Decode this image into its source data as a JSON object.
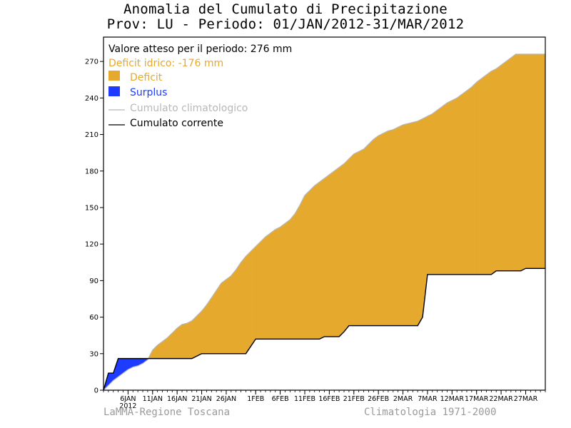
{
  "header": {
    "title": "Anomalia del Cumulato di Precipitazione",
    "subtitle": "Prov: LU - Periodo: 01/JAN/2012-31/MAR/2012"
  },
  "footer": {
    "left": "LaMMA-Regione Toscana",
    "right": "Climatologia 1971-2000"
  },
  "legend": {
    "expected": "Valore atteso per il periodo: 276 mm",
    "deficit_text": "Deficit idrico: -176 mm",
    "deficit_label": "Deficit",
    "surplus_label": "Surplus",
    "clim_label": "Cumulato climatologico",
    "current_label": "Cumulato corrente"
  },
  "colors": {
    "deficit": "#e5a92e",
    "surplus": "#1e3cff",
    "climatological": "#b8b8b8",
    "current": "#000000",
    "frame": "#000000"
  },
  "chart_data": {
    "type": "area",
    "x_unit": "day of year 2012",
    "xlim": [
      1,
      91
    ],
    "ylim": [
      0,
      290
    ],
    "y_ticks": [
      0,
      30,
      60,
      90,
      120,
      150,
      180,
      210,
      240,
      270
    ],
    "x_ticks": [
      {
        "day": 6,
        "label": "6JAN"
      },
      {
        "day": 11,
        "label": "11JAN"
      },
      {
        "day": 16,
        "label": "16JAN"
      },
      {
        "day": 21,
        "label": "21JAN"
      },
      {
        "day": 26,
        "label": "26JAN"
      },
      {
        "day": 32,
        "label": "1FEB"
      },
      {
        "day": 37,
        "label": "6FEB"
      },
      {
        "day": 42,
        "label": "11FEB"
      },
      {
        "day": 47,
        "label": "16FEB"
      },
      {
        "day": 52,
        "label": "21FEB"
      },
      {
        "day": 57,
        "label": "26FEB"
      },
      {
        "day": 62,
        "label": "2MAR"
      },
      {
        "day": 67,
        "label": "7MAR"
      },
      {
        "day": 72,
        "label": "12MAR"
      },
      {
        "day": 77,
        "label": "17MAR"
      },
      {
        "day": 82,
        "label": "22MAR"
      },
      {
        "day": 87,
        "label": "27MAR"
      }
    ],
    "year_label": "2012",
    "year_label_day": 6,
    "grid": false,
    "legend_position": "top-left",
    "series": [
      {
        "name": "Cumulato climatologico",
        "x": [
          1,
          2,
          3,
          4,
          5,
          6,
          7,
          8,
          9,
          10,
          11,
          12,
          13,
          14,
          15,
          16,
          17,
          18,
          19,
          20,
          21,
          22,
          23,
          24,
          25,
          26,
          27,
          28,
          29,
          30,
          31,
          32,
          33,
          34,
          35,
          36,
          37,
          38,
          39,
          40,
          41,
          42,
          43,
          44,
          45,
          46,
          47,
          48,
          49,
          50,
          51,
          52,
          53,
          54,
          55,
          56,
          57,
          58,
          59,
          60,
          61,
          62,
          63,
          64,
          65,
          66,
          67,
          68,
          69,
          70,
          71,
          72,
          73,
          74,
          75,
          76,
          77,
          78,
          79,
          80,
          81,
          82,
          83,
          84,
          85,
          86,
          87,
          88,
          89,
          90,
          91
        ],
        "values": [
          0,
          4,
          8,
          11,
          14,
          17,
          19,
          20,
          22,
          25,
          33,
          37,
          40,
          43,
          47,
          51,
          54,
          55,
          57,
          61,
          65,
          70,
          76,
          82,
          88,
          91,
          94,
          99,
          105,
          110,
          114,
          118,
          122,
          126,
          129,
          132,
          134,
          137,
          140,
          145,
          152,
          160,
          164,
          168,
          171,
          174,
          177,
          180,
          183,
          186,
          190,
          194,
          196,
          198,
          202,
          206,
          209,
          211,
          213,
          214,
          216,
          218,
          219,
          220,
          221,
          223,
          225,
          227,
          230,
          233,
          236,
          238,
          240,
          243,
          246,
          249,
          253,
          256,
          259,
          262,
          264,
          267,
          270,
          273,
          276,
          276,
          276,
          276,
          276,
          276,
          276
        ]
      },
      {
        "name": "Cumulato corrente",
        "x": [
          1,
          2,
          3,
          4,
          5,
          6,
          7,
          8,
          9,
          10,
          11,
          12,
          13,
          14,
          15,
          16,
          17,
          18,
          19,
          20,
          21,
          22,
          23,
          24,
          25,
          26,
          27,
          28,
          29,
          30,
          31,
          32,
          33,
          34,
          35,
          36,
          37,
          38,
          39,
          40,
          41,
          42,
          43,
          44,
          45,
          46,
          47,
          48,
          49,
          50,
          51,
          52,
          53,
          54,
          55,
          56,
          57,
          58,
          59,
          60,
          61,
          62,
          63,
          64,
          65,
          66,
          67,
          68,
          69,
          70,
          71,
          72,
          73,
          74,
          75,
          76,
          77,
          78,
          79,
          80,
          81,
          82,
          83,
          84,
          85,
          86,
          87,
          88,
          89,
          90,
          91
        ],
        "values": [
          0,
          14,
          14,
          26,
          26,
          26,
          26,
          26,
          26,
          26,
          26,
          26,
          26,
          26,
          26,
          26,
          26,
          26,
          26,
          28,
          30,
          30,
          30,
          30,
          30,
          30,
          30,
          30,
          30,
          30,
          36,
          42,
          42,
          42,
          42,
          42,
          42,
          42,
          42,
          42,
          42,
          42,
          42,
          42,
          42,
          44,
          44,
          44,
          44,
          48,
          53,
          53,
          53,
          53,
          53,
          53,
          53,
          53,
          53,
          53,
          53,
          53,
          53,
          53,
          53,
          60,
          95,
          95,
          95,
          95,
          95,
          95,
          95,
          95,
          95,
          95,
          95,
          95,
          95,
          95,
          98,
          98,
          98,
          98,
          98,
          98,
          100,
          100,
          100,
          100,
          100
        ]
      }
    ]
  }
}
